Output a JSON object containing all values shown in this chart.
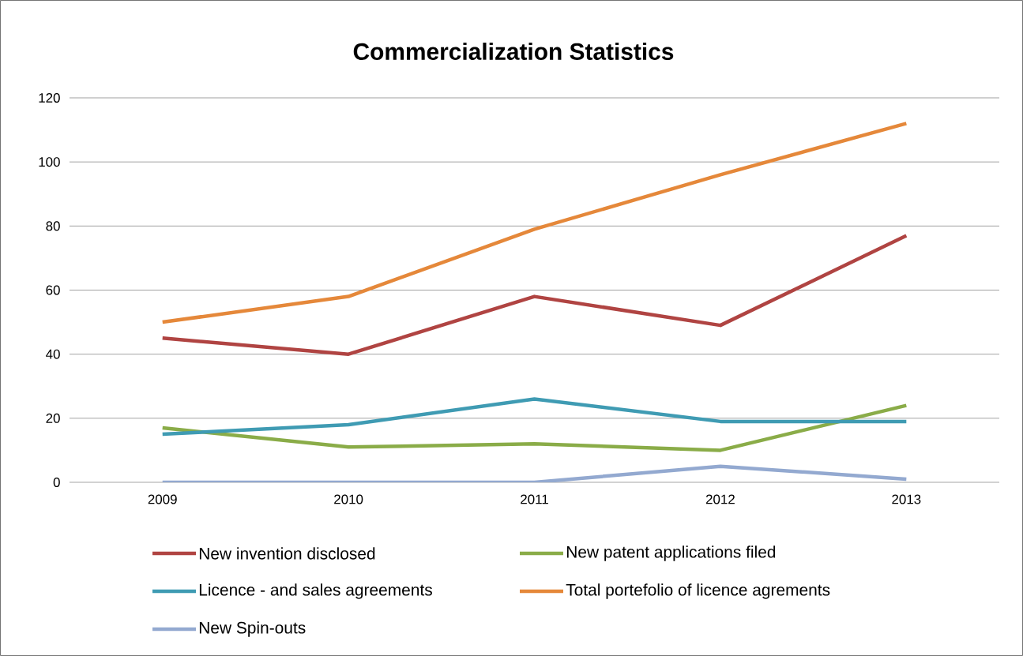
{
  "chart_data": {
    "type": "line",
    "title": "Commercialization Statistics",
    "categories": [
      "2009",
      "2010",
      "2011",
      "2012",
      "2013"
    ],
    "series": [
      {
        "name": "New invention disclosed",
        "color": "#b04442",
        "values": [
          45,
          40,
          58,
          49,
          77
        ]
      },
      {
        "name": "New patent applications filed",
        "color": "#8aac48",
        "values": [
          17,
          11,
          12,
          10,
          24
        ]
      },
      {
        "name": "Licence - and sales agreements",
        "color": "#3f9bb3",
        "values": [
          15,
          18,
          26,
          19,
          19
        ]
      },
      {
        "name": "Total portefolio of licence agrements",
        "color": "#e5883a",
        "values": [
          50,
          58,
          79,
          96,
          112
        ]
      },
      {
        "name": "New Spin-outs",
        "color": "#93a9d0",
        "values": [
          0,
          0,
          0,
          5,
          1
        ]
      }
    ],
    "ylim": [
      0,
      120
    ],
    "yticks": [
      0,
      20,
      40,
      60,
      80,
      100,
      120
    ],
    "grid": "y",
    "legend": "bottom",
    "marker": "none",
    "line_style": "solid"
  }
}
